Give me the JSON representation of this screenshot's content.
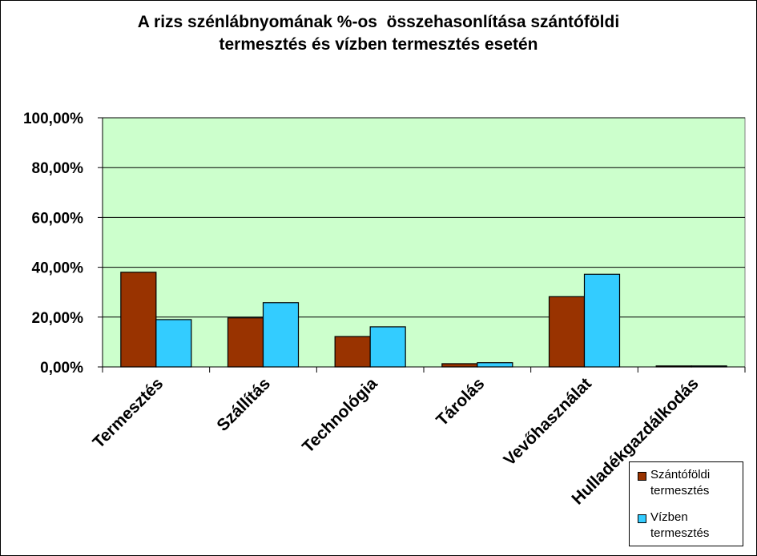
{
  "chart_data": {
    "type": "bar",
    "title_lines": [
      "A rizs szénlábnyomának %-os  összehasonlítása szántóföldi",
      "termesztés és vízben termesztés esetén"
    ],
    "categories": [
      "Termesztés",
      "Szállítás",
      "Technológia",
      "Tárolás",
      "Vevőhasználat",
      "Hulladékgazdálkodás"
    ],
    "series": [
      {
        "name": "Szántóföldi termesztés",
        "color": "#993300",
        "values": [
          38.0,
          19.7,
          12.2,
          1.3,
          28.2,
          0.4
        ]
      },
      {
        "name": "Vízben termesztés",
        "color": "#33CCFF",
        "values": [
          19.0,
          25.8,
          16.1,
          1.7,
          37.2,
          0.4
        ]
      }
    ],
    "ylim": [
      0,
      100
    ],
    "yticks": [
      "0,00%",
      "20,00%",
      "40,00%",
      "60,00%",
      "80,00%",
      "100,00%"
    ],
    "ytick_values": [
      0,
      20,
      40,
      60,
      80,
      100
    ],
    "plot_background": "#CCFFCC",
    "grid": true,
    "legend_position": "bottom-right"
  },
  "legend": {
    "items": [
      {
        "line1": "Szántóföldi",
        "line2": "termesztés",
        "color": "#993300"
      },
      {
        "line1": "Vízben",
        "line2": "termesztés",
        "color": "#33CCFF"
      }
    ]
  }
}
